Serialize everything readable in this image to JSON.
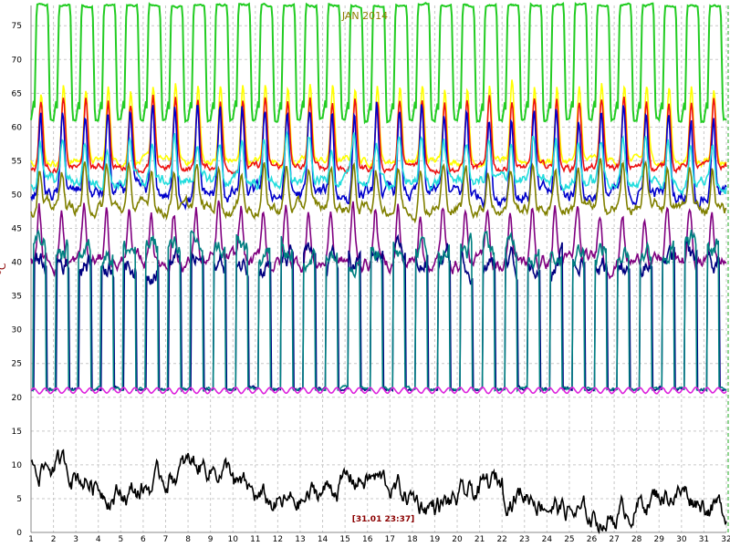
{
  "chart_data": {
    "type": "line",
    "title": "JAN 2014",
    "ylabel": "°C",
    "cursor_label": "[31.01 23:37]",
    "ylim": [
      0,
      78
    ],
    "xlim": [
      1,
      32
    ],
    "grid": true,
    "x_ticks": [
      "1",
      "2",
      "3",
      "4",
      "5",
      "6",
      "7",
      "8",
      "9",
      "10",
      "11",
      "12",
      "13",
      "14",
      "15",
      "16",
      "17",
      "18",
      "19",
      "20",
      "21",
      "22",
      "23",
      "24",
      "25",
      "26",
      "27",
      "28",
      "29",
      "30",
      "31",
      "32"
    ],
    "y_ticks": [
      "0",
      "5",
      "10",
      "15",
      "20",
      "25",
      "30",
      "35",
      "40",
      "45",
      "50",
      "55",
      "60",
      "65",
      "70",
      "75"
    ],
    "series": [
      {
        "color": "#22cc22",
        "base": 61,
        "peak": 78,
        "noise": 1.0,
        "kind": "plateau",
        "phase": 0.0
      },
      {
        "color": "#ffff00",
        "base": 55,
        "peak": 66,
        "noise": 1.5,
        "kind": "spike",
        "phase": 0.05
      },
      {
        "color": "#ee1111",
        "base": 54,
        "peak": 64,
        "noise": 1.5,
        "kind": "spike",
        "phase": 0.06
      },
      {
        "color": "#0000cc",
        "base": 50,
        "peak": 62,
        "noise": 3.0,
        "kind": "spike",
        "phase": 0.08
      },
      {
        "color": "#22dddd",
        "base": 52,
        "peak": 58,
        "noise": 2.5,
        "kind": "spike",
        "phase": 0.1
      },
      {
        "color": "#808000",
        "base": 48,
        "peak": 54,
        "noise": 2.5,
        "kind": "spike",
        "phase": 0.12
      },
      {
        "color": "#800080",
        "base": 40,
        "peak": 48,
        "noise": 3.0,
        "kind": "spike",
        "phase": 0.14
      },
      {
        "color": "#000080",
        "base": 21,
        "peak": 40,
        "noise": 3.0,
        "kind": "drop",
        "phase": 0.16
      },
      {
        "color": "#008080",
        "base": 21,
        "peak": 42,
        "noise": 3.0,
        "kind": "drop",
        "phase": 0.18
      },
      {
        "color": "#dd22dd",
        "base": 21,
        "peak": 21.5,
        "noise": 0.5,
        "kind": "flat",
        "phase": 0.0
      },
      {
        "color": "#000000",
        "base": 6,
        "peak": 6,
        "noise": 2.5,
        "kind": "low",
        "phase": 0.0
      }
    ]
  }
}
